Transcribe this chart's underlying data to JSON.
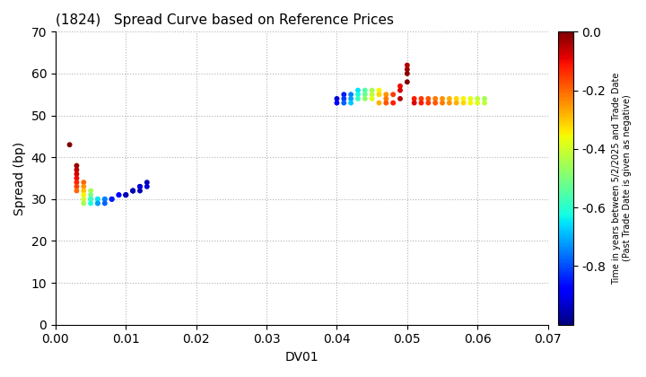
{
  "title": "(1824)   Spread Curve based on Reference Prices",
  "xlabel": "DV01",
  "ylabel": "Spread (bp)",
  "xlim": [
    0.0,
    0.07
  ],
  "ylim": [
    0,
    70
  ],
  "xticks": [
    0.0,
    0.01,
    0.02,
    0.03,
    0.04,
    0.05,
    0.06,
    0.07
  ],
  "yticks": [
    0,
    10,
    20,
    30,
    40,
    50,
    60,
    70
  ],
  "colorbar_label_line1": "Time in years between 5/2/2025 and Trade Date",
  "colorbar_label_line2": "(Past Trade Date is given as negative)",
  "colorbar_min": -1.0,
  "colorbar_max": 0.0,
  "colorbar_ticks": [
    0.0,
    -0.2,
    -0.4,
    -0.6,
    -0.8
  ],
  "cluster1": {
    "dv01": [
      0.002,
      0.003,
      0.003,
      0.003,
      0.003,
      0.003,
      0.003,
      0.003,
      0.004,
      0.004,
      0.004,
      0.004,
      0.004,
      0.004,
      0.005,
      0.005,
      0.005,
      0.005,
      0.005,
      0.006,
      0.006,
      0.006,
      0.006,
      0.007,
      0.007,
      0.007,
      0.008,
      0.008,
      0.008,
      0.009,
      0.009,
      0.01,
      0.01,
      0.01,
      0.011,
      0.011,
      0.011,
      0.012,
      0.012,
      0.012,
      0.013,
      0.013
    ],
    "spread": [
      43,
      38,
      37,
      36,
      35,
      34,
      33,
      32,
      34,
      33,
      32,
      31,
      30,
      29,
      32,
      31,
      30,
      30,
      29,
      30,
      30,
      29,
      29,
      30,
      30,
      29,
      30,
      30,
      30,
      31,
      31,
      31,
      31,
      31,
      32,
      32,
      32,
      33,
      33,
      32,
      33,
      34
    ],
    "time": [
      0.0,
      -0.02,
      -0.05,
      -0.08,
      -0.1,
      -0.13,
      -0.16,
      -0.2,
      -0.2,
      -0.25,
      -0.3,
      -0.35,
      -0.4,
      -0.45,
      -0.45,
      -0.5,
      -0.55,
      -0.58,
      -0.62,
      -0.62,
      -0.65,
      -0.68,
      -0.72,
      -0.72,
      -0.75,
      -0.78,
      -0.78,
      -0.82,
      -0.85,
      -0.85,
      -0.88,
      -0.88,
      -0.92,
      -0.95,
      -0.88,
      -0.92,
      -0.95,
      -0.88,
      -0.92,
      -0.95,
      -0.92,
      -0.95
    ]
  },
  "cluster2": {
    "dv01": [
      0.04,
      0.04,
      0.041,
      0.041,
      0.041,
      0.042,
      0.042,
      0.042,
      0.043,
      0.043,
      0.043,
      0.044,
      0.044,
      0.044,
      0.045,
      0.045,
      0.045,
      0.046,
      0.046,
      0.046,
      0.047,
      0.047,
      0.047,
      0.048,
      0.048,
      0.049,
      0.049,
      0.049,
      0.05,
      0.05,
      0.05,
      0.05,
      0.051,
      0.051,
      0.052,
      0.052,
      0.053,
      0.053,
      0.054,
      0.054,
      0.055,
      0.055,
      0.056,
      0.056,
      0.057,
      0.057,
      0.058,
      0.058,
      0.059,
      0.059,
      0.06,
      0.06,
      0.061,
      0.061
    ],
    "spread": [
      54,
      53,
      55,
      54,
      53,
      55,
      54,
      53,
      56,
      55,
      54,
      56,
      55,
      54,
      56,
      55,
      54,
      56,
      55,
      53,
      55,
      54,
      53,
      55,
      53,
      57,
      56,
      54,
      62,
      61,
      60,
      58,
      54,
      53,
      54,
      53,
      54,
      53,
      54,
      53,
      54,
      53,
      54,
      53,
      54,
      53,
      54,
      53,
      54,
      53,
      54,
      53,
      54,
      53
    ],
    "time": [
      -0.92,
      -0.88,
      -0.85,
      -0.82,
      -0.78,
      -0.75,
      -0.72,
      -0.68,
      -0.65,
      -0.62,
      -0.58,
      -0.55,
      -0.52,
      -0.48,
      -0.45,
      -0.42,
      -0.38,
      -0.35,
      -0.32,
      -0.28,
      -0.25,
      -0.22,
      -0.18,
      -0.15,
      -0.12,
      -0.1,
      -0.08,
      -0.05,
      -0.05,
      -0.03,
      -0.01,
      0.0,
      -0.12,
      -0.08,
      -0.15,
      -0.12,
      -0.18,
      -0.15,
      -0.22,
      -0.18,
      -0.25,
      -0.22,
      -0.28,
      -0.25,
      -0.32,
      -0.28,
      -0.35,
      -0.32,
      -0.38,
      -0.35,
      -0.42,
      -0.38,
      -0.45,
      -0.42
    ]
  }
}
